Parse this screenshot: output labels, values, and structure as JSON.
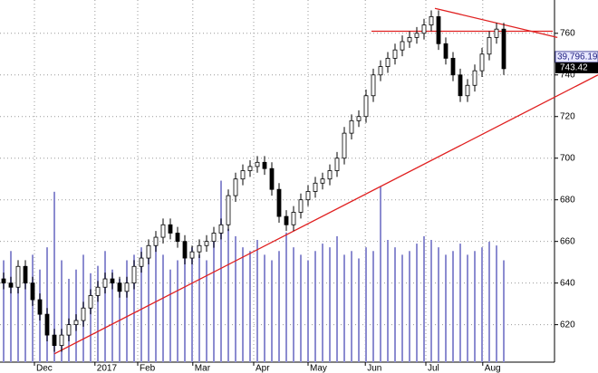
{
  "chart_data": {
    "type": "candlestick",
    "open": [
      642,
      640,
      638,
      648,
      640,
      632,
      625,
      615,
      610,
      615,
      620,
      622,
      628,
      634,
      638,
      642,
      640,
      636,
      640,
      648,
      652,
      658,
      662,
      668,
      664,
      660,
      652,
      655,
      658,
      660,
      664,
      668,
      682,
      690,
      694,
      696,
      698,
      695,
      685,
      672,
      668,
      674,
      680,
      684,
      688,
      690,
      694,
      700,
      712,
      718,
      720,
      730,
      740,
      744,
      748,
      752,
      756,
      758,
      760,
      764,
      768,
      755,
      748,
      740,
      730,
      735,
      742,
      750,
      758,
      762
    ],
    "high": [
      645,
      643,
      651,
      651,
      643,
      635,
      628,
      618,
      618,
      623,
      625,
      631,
      637,
      641,
      645,
      645,
      643,
      643,
      651,
      655,
      661,
      665,
      671,
      671,
      667,
      663,
      658,
      661,
      663,
      667,
      671,
      685,
      693,
      697,
      699,
      701,
      701,
      698,
      688,
      675,
      677,
      683,
      687,
      691,
      693,
      697,
      703,
      715,
      721,
      723,
      733,
      743,
      747,
      751,
      755,
      759,
      761,
      763,
      767,
      771,
      771,
      758,
      751,
      743,
      738,
      745,
      753,
      761,
      765,
      765
    ],
    "low": [
      637,
      635,
      635,
      637,
      629,
      622,
      612,
      607,
      607,
      612,
      617,
      619,
      625,
      631,
      635,
      637,
      633,
      633,
      637,
      645,
      649,
      655,
      659,
      661,
      657,
      649,
      649,
      652,
      655,
      657,
      661,
      665,
      679,
      687,
      691,
      693,
      692,
      682,
      669,
      665,
      665,
      671,
      677,
      681,
      685,
      687,
      691,
      697,
      709,
      715,
      717,
      727,
      737,
      741,
      745,
      749,
      753,
      755,
      757,
      761,
      752,
      745,
      737,
      727,
      727,
      732,
      739,
      747,
      755,
      740
    ],
    "close": [
      640,
      638,
      648,
      640,
      632,
      625,
      615,
      610,
      615,
      620,
      622,
      628,
      634,
      638,
      642,
      640,
      636,
      640,
      648,
      652,
      658,
      662,
      668,
      664,
      660,
      652,
      655,
      658,
      660,
      664,
      668,
      682,
      690,
      694,
      696,
      698,
      695,
      685,
      672,
      668,
      674,
      680,
      684,
      688,
      690,
      694,
      700,
      712,
      718,
      720,
      730,
      740,
      744,
      748,
      752,
      756,
      758,
      760,
      764,
      768,
      755,
      748,
      740,
      730,
      735,
      742,
      750,
      758,
      762,
      743
    ],
    "volume": [
      55,
      60,
      48,
      52,
      58,
      50,
      62,
      92,
      55,
      45,
      50,
      58,
      48,
      52,
      60,
      50,
      45,
      55,
      58,
      62,
      60,
      65,
      58,
      50,
      55,
      60,
      62,
      58,
      55,
      65,
      98,
      72,
      68,
      62,
      60,
      66,
      58,
      55,
      60,
      70,
      62,
      58,
      55,
      60,
      64,
      62,
      68,
      58,
      60,
      56,
      62,
      60,
      95,
      66,
      62,
      58,
      60,
      64,
      68,
      66,
      62,
      58,
      60,
      64,
      58,
      60,
      62,
      65,
      63,
      55
    ],
    "volume_lim": [
      0,
      110
    ],
    "volume_color": "#8c8cd0",
    "ylim": [
      602,
      776
    ],
    "yticks": [
      620,
      640,
      660,
      680,
      700,
      720,
      740,
      760
    ],
    "xlim": [
      -0.5,
      82
    ],
    "xticks": [
      {
        "value": 4.25,
        "label": "Dec"
      },
      {
        "value": 12.6,
        "label": "2017"
      },
      {
        "value": 18.5,
        "label": "Feb"
      },
      {
        "value": 26.1,
        "label": "Mar"
      },
      {
        "value": 34.5,
        "label": "Apr"
      },
      {
        "value": 42,
        "label": "May"
      },
      {
        "value": 49.9,
        "label": "Jun"
      },
      {
        "value": 58.25,
        "label": "Jul"
      },
      {
        "value": 66.1,
        "label": "Aug"
      }
    ],
    "grid": true,
    "trend_lines": [
      {
        "x": [
          7,
          82
        ],
        "y": [
          606,
          740
        ],
        "color": "#e02020"
      },
      {
        "x": [
          59.5,
          76.4
        ],
        "y": [
          772,
          758
        ],
        "color": "#e02020"
      },
      {
        "x": [
          50.75,
          75.75
        ],
        "y": [
          761,
          761
        ],
        "color": "#e02020"
      }
    ],
    "index_label": "39,796.19",
    "last_price": 743.42
  }
}
